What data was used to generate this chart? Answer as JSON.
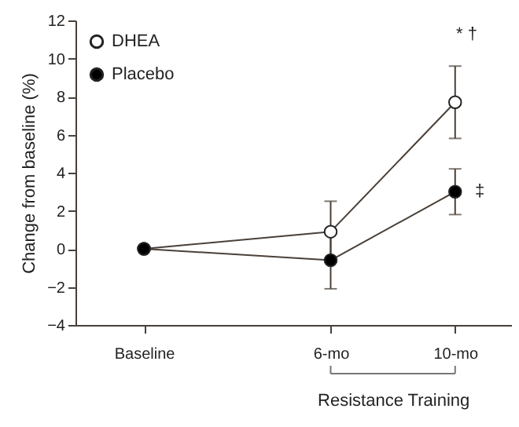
{
  "chart_data": {
    "type": "line",
    "ylabel": "Change from baseline (%)",
    "xlabel": "Resistance Training",
    "x": [
      0,
      6,
      10
    ],
    "xlim": [
      -2.2,
      11.8
    ],
    "xticks": [
      {
        "value": 0,
        "label": "Baseline"
      },
      {
        "value": 6,
        "label": "6-mo"
      },
      {
        "value": 10,
        "label": "10-mo"
      }
    ],
    "ylim": [
      -4,
      12
    ],
    "yticks": [
      -4,
      -2,
      0,
      2,
      4,
      6,
      8,
      10,
      12
    ],
    "series": [
      {
        "name": "DHEA",
        "color": "#ffffff",
        "values": [
          0,
          0.9,
          7.7
        ],
        "errors": [
          null,
          1.6,
          1.9
        ]
      },
      {
        "name": "Placebo",
        "color": "#000000",
        "values": [
          0,
          -0.6,
          3.0
        ],
        "errors": [
          null,
          1.5,
          1.2
        ]
      }
    ],
    "annotations": [
      "* †",
      "‡"
    ],
    "legend": "top left",
    "marker": "circle",
    "line_style": "solid"
  }
}
